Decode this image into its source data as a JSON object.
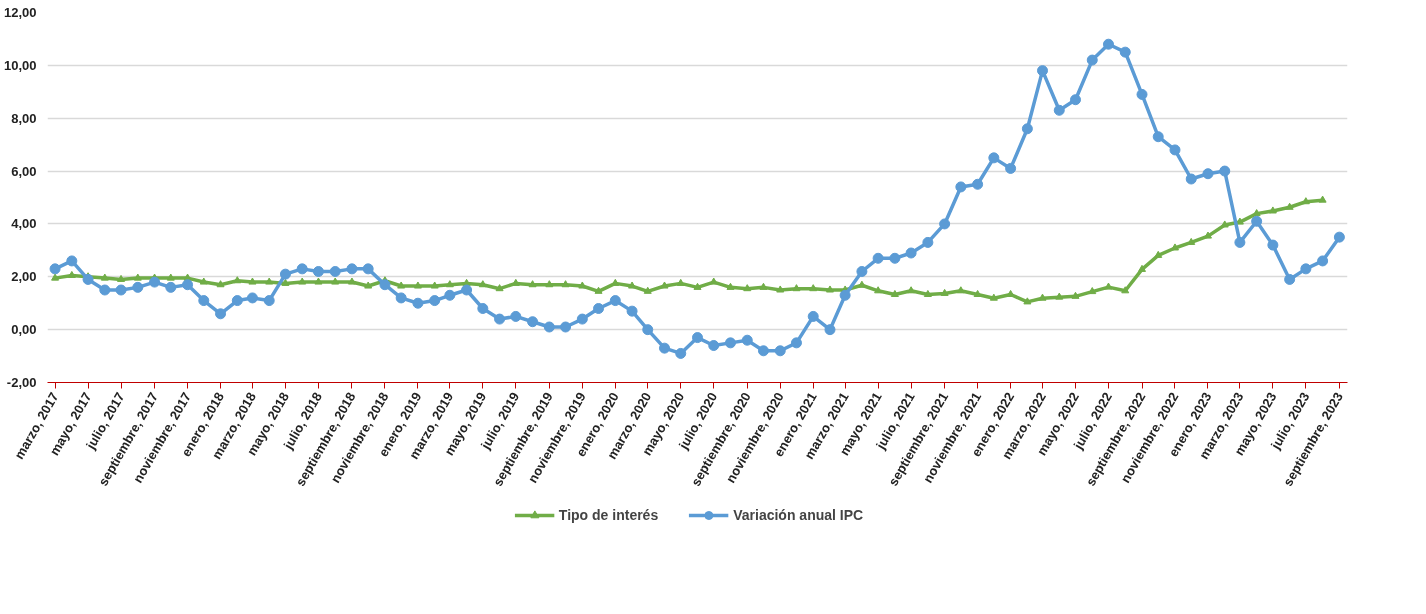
{
  "chart_data": {
    "type": "line",
    "x": [
      "2017-03",
      "2017-04",
      "2017-05",
      "2017-06",
      "2017-07",
      "2017-08",
      "2017-09",
      "2017-10",
      "2017-11",
      "2017-12",
      "2018-01",
      "2018-02",
      "2018-03",
      "2018-04",
      "2018-05",
      "2018-06",
      "2018-07",
      "2018-08",
      "2018-09",
      "2018-10",
      "2018-11",
      "2018-12",
      "2019-01",
      "2019-02",
      "2019-03",
      "2019-04",
      "2019-05",
      "2019-06",
      "2019-07",
      "2019-08",
      "2019-09",
      "2019-10",
      "2019-11",
      "2019-12",
      "2020-01",
      "2020-02",
      "2020-03",
      "2020-04",
      "2020-05",
      "2020-06",
      "2020-07",
      "2020-08",
      "2020-09",
      "2020-10",
      "2020-11",
      "2020-12",
      "2021-01",
      "2021-02",
      "2021-03",
      "2021-04",
      "2021-05",
      "2021-06",
      "2021-07",
      "2021-08",
      "2021-09",
      "2021-10",
      "2021-11",
      "2021-12",
      "2022-01",
      "2022-02",
      "2022-03",
      "2022-04",
      "2022-05",
      "2022-06",
      "2022-07",
      "2022-08",
      "2022-09",
      "2022-10",
      "2022-11",
      "2022-12",
      "2023-01",
      "2023-02",
      "2023-03",
      "2023-04",
      "2023-05",
      "2023-06",
      "2023-07",
      "2023-08",
      "2023-09"
    ],
    "series": [
      {
        "name": "Tipo de interés",
        "color": "#70ad47",
        "marker": "triangle",
        "values": [
          1.95,
          2.05,
          2.0,
          1.95,
          1.9,
          1.95,
          1.95,
          1.95,
          1.95,
          1.8,
          1.7,
          1.85,
          1.8,
          1.8,
          1.75,
          1.8,
          1.8,
          1.8,
          1.8,
          1.65,
          1.85,
          1.65,
          1.65,
          1.65,
          1.7,
          1.75,
          1.7,
          1.55,
          1.75,
          1.7,
          1.7,
          1.7,
          1.65,
          1.45,
          1.75,
          1.65,
          1.45,
          1.65,
          1.75,
          1.6,
          1.8,
          1.6,
          1.55,
          1.6,
          1.5,
          1.55,
          1.55,
          1.5,
          1.5,
          1.68,
          1.47,
          1.33,
          1.47,
          1.33,
          1.37,
          1.47,
          1.33,
          1.19,
          1.33,
          1.05,
          1.19,
          1.23,
          1.26,
          1.44,
          1.61,
          1.47,
          2.28,
          2.81,
          3.09,
          3.3,
          3.54,
          3.96,
          4.07,
          4.39,
          4.49,
          4.63,
          4.84,
          4.9,
          null
        ]
      },
      {
        "name": "Variación anual IPC",
        "color": "#5b9bd5",
        "marker": "circle",
        "values": [
          2.3,
          2.6,
          1.9,
          1.5,
          1.5,
          1.6,
          1.8,
          1.6,
          1.7,
          1.1,
          0.6,
          1.1,
          1.2,
          1.1,
          2.1,
          2.3,
          2.2,
          2.2,
          2.3,
          2.3,
          1.7,
          1.2,
          1.0,
          1.1,
          1.3,
          1.5,
          0.8,
          0.4,
          0.5,
          0.3,
          0.1,
          0.1,
          0.4,
          0.8,
          1.1,
          0.7,
          0.0,
          -0.7,
          -0.9,
          -0.3,
          -0.6,
          -0.5,
          -0.4,
          -0.8,
          -0.8,
          -0.5,
          0.5,
          0.0,
          1.3,
          2.2,
          2.7,
          2.7,
          2.9,
          3.3,
          4.0,
          5.4,
          5.5,
          6.5,
          6.1,
          7.6,
          9.8,
          8.3,
          8.7,
          10.2,
          10.8,
          10.5,
          8.9,
          7.3,
          6.8,
          5.7,
          5.9,
          6.0,
          3.3,
          4.1,
          3.2,
          1.9,
          2.3,
          2.6,
          3.5
        ]
      }
    ],
    "xlim": [
      "2017-02-15",
      "2023-09-16"
    ],
    "xticks": [
      {
        "value": "2017-03",
        "label": "marzo, 2017"
      },
      {
        "value": "2017-05",
        "label": "mayo, 2017"
      },
      {
        "value": "2017-07",
        "label": "julio, 2017"
      },
      {
        "value": "2017-09",
        "label": "septiembre, 2017"
      },
      {
        "value": "2017-11",
        "label": "noviembre, 2017"
      },
      {
        "value": "2018-01",
        "label": "enero, 2018"
      },
      {
        "value": "2018-03",
        "label": "marzo, 2018"
      },
      {
        "value": "2018-05",
        "label": "mayo, 2018"
      },
      {
        "value": "2018-07",
        "label": "julio, 2018"
      },
      {
        "value": "2018-09",
        "label": "septiembre, 2018"
      },
      {
        "value": "2018-11",
        "label": "noviembre, 2018"
      },
      {
        "value": "2019-01",
        "label": "enero, 2019"
      },
      {
        "value": "2019-03",
        "label": "marzo, 2019"
      },
      {
        "value": "2019-05",
        "label": "mayo, 2019"
      },
      {
        "value": "2019-07",
        "label": "julio, 2019"
      },
      {
        "value": "2019-09",
        "label": "septiembre, 2019"
      },
      {
        "value": "2019-11",
        "label": "noviembre, 2019"
      },
      {
        "value": "2020-01",
        "label": "enero, 2020"
      },
      {
        "value": "2020-03",
        "label": "marzo, 2020"
      },
      {
        "value": "2020-05",
        "label": "mayo, 2020"
      },
      {
        "value": "2020-07",
        "label": "julio, 2020"
      },
      {
        "value": "2020-09",
        "label": "septiembre, 2020"
      },
      {
        "value": "2020-11",
        "label": "noviembre, 2020"
      },
      {
        "value": "2021-01",
        "label": "enero, 2021"
      },
      {
        "value": "2021-03",
        "label": "marzo, 2021"
      },
      {
        "value": "2021-05",
        "label": "mayo, 2021"
      },
      {
        "value": "2021-07",
        "label": "julio, 2021"
      },
      {
        "value": "2021-09",
        "label": "septiembre, 2021"
      },
      {
        "value": "2021-11",
        "label": "noviembre, 2021"
      },
      {
        "value": "2022-01",
        "label": "enero, 2022"
      },
      {
        "value": "2022-03",
        "label": "marzo, 2022"
      },
      {
        "value": "2022-05",
        "label": "mayo, 2022"
      },
      {
        "value": "2022-07",
        "label": "julio, 2022"
      },
      {
        "value": "2022-09",
        "label": "septiembre, 2022"
      },
      {
        "value": "2022-11",
        "label": "noviembre, 2022"
      },
      {
        "value": "2023-01",
        "label": "enero, 2023"
      },
      {
        "value": "2023-03",
        "label": "marzo, 2023"
      },
      {
        "value": "2023-05",
        "label": "mayo, 2023"
      },
      {
        "value": "2023-07",
        "label": "julio, 2023"
      },
      {
        "value": "2023-09",
        "label": "septiembre, 2023"
      }
    ],
    "ylim": [
      -2,
      12
    ],
    "yticks": [
      {
        "value": -2,
        "label": "-2,00"
      },
      {
        "value": 0,
        "label": "0,00"
      },
      {
        "value": 2,
        "label": "2,00"
      },
      {
        "value": 4,
        "label": "4,00"
      },
      {
        "value": 6,
        "label": "6,00"
      },
      {
        "value": 8,
        "label": "8,00"
      },
      {
        "value": 10,
        "label": "10,00"
      },
      {
        "value": 12,
        "label": "12,00"
      }
    ],
    "grid": "y",
    "legend": "bottom",
    "line_style": "solid"
  }
}
